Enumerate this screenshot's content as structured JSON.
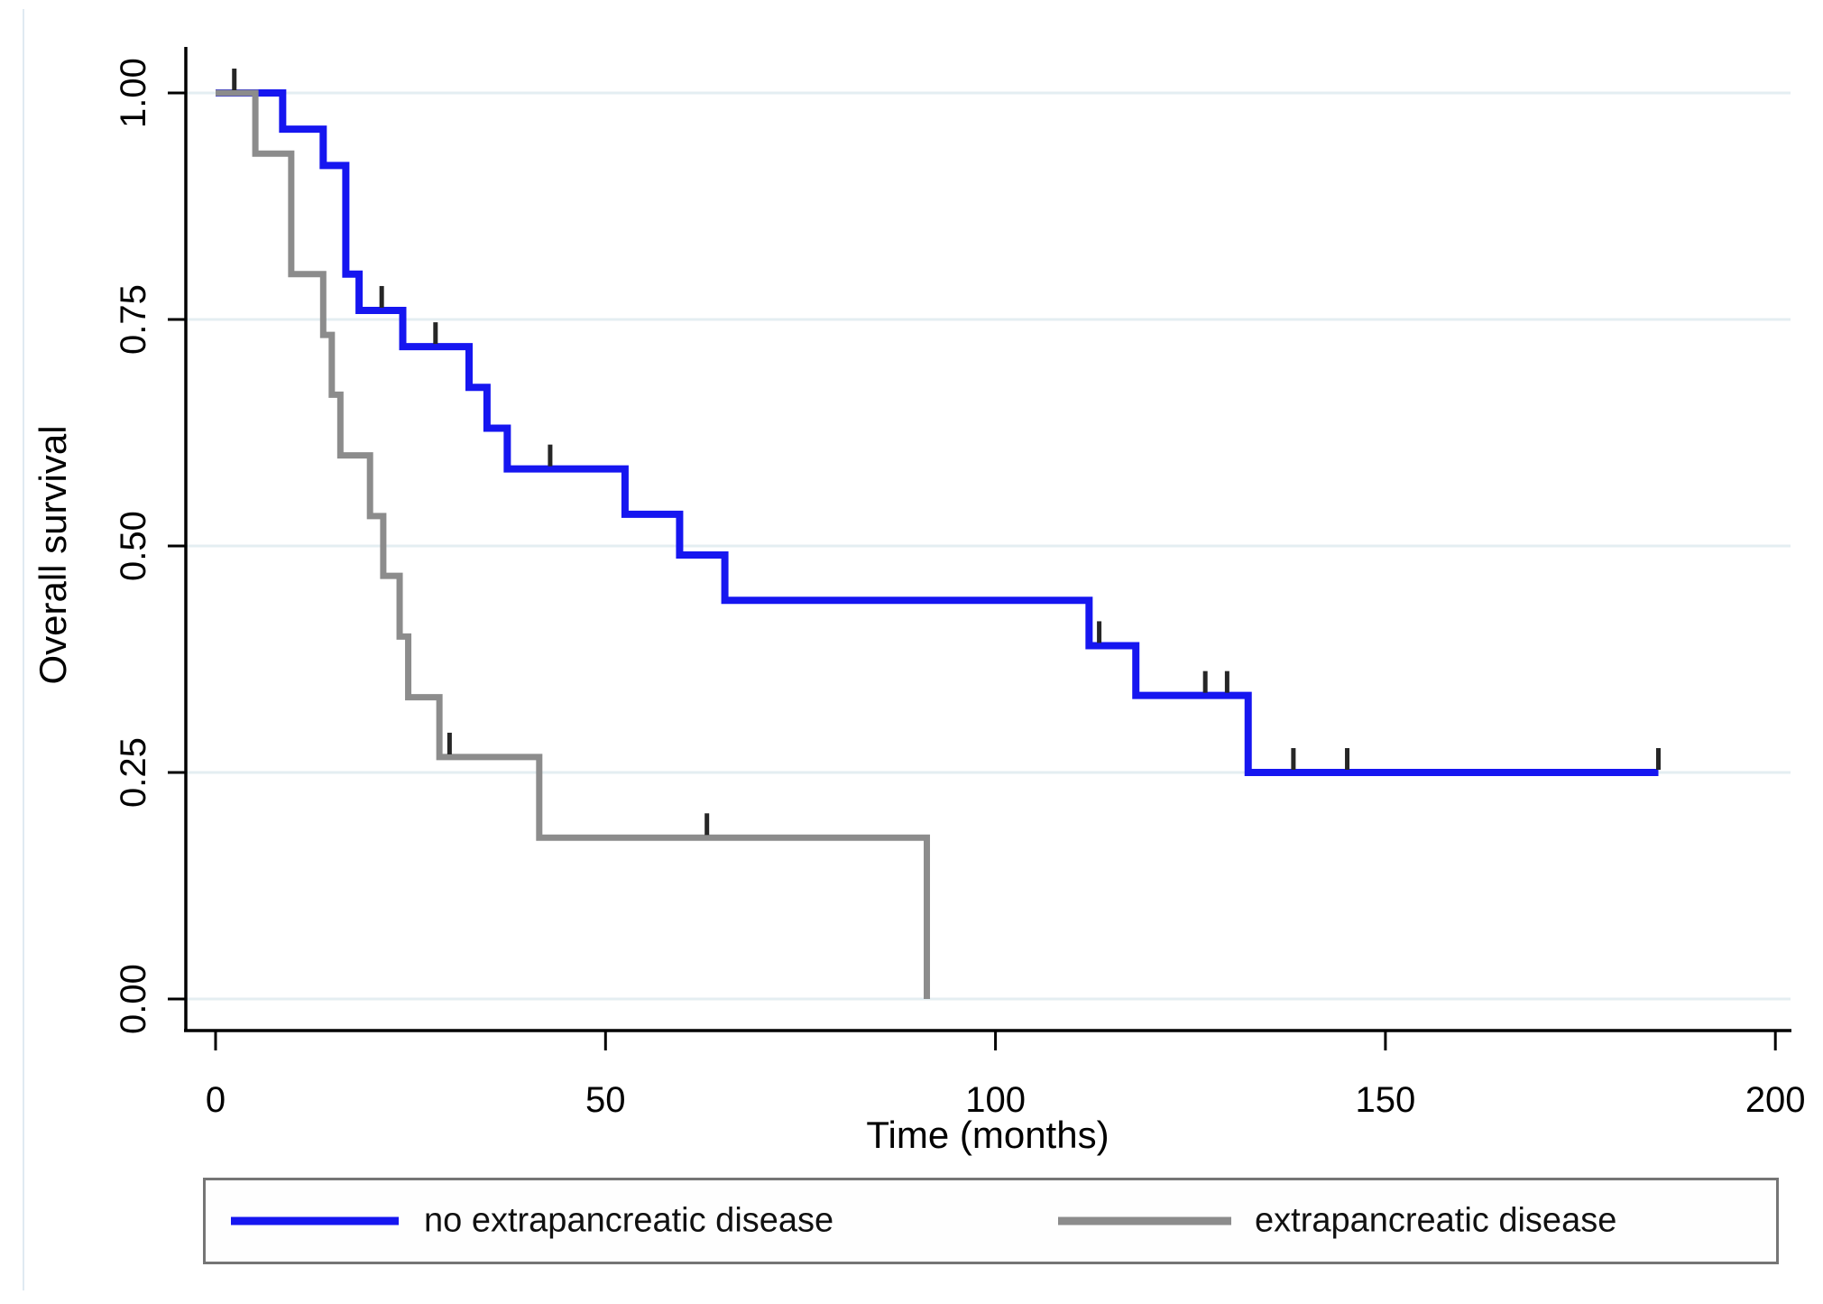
{
  "figure": {
    "background": "#ffffff",
    "axis_color": "#000000",
    "censor_tick_color": "#262626"
  },
  "chart_data": {
    "type": "line",
    "subtype": "kaplan-meier-step",
    "title": "",
    "xlabel": "Time (months)",
    "ylabel": "Overall survival",
    "xlim": [
      0,
      207
    ],
    "ylim": [
      0,
      1.0
    ],
    "grid": "horizontal",
    "gridline_color": "#e4eef2",
    "xticks": [
      "0",
      "50",
      "100",
      "150",
      "200"
    ],
    "xtick_values": [
      0,
      50,
      100,
      150,
      200
    ],
    "yticks": [
      "0.00",
      "0.25",
      "0.50",
      "0.75",
      "1.00"
    ],
    "ytick_values": [
      0,
      0.25,
      0.5,
      0.75,
      1.0
    ],
    "legend_position": "bottom-box",
    "series": [
      {
        "name": "no extrapancreatic disease",
        "color": "#1616f0",
        "line_width": 8,
        "steps": [
          [
            0,
            1.0
          ],
          [
            8.6,
            0.96
          ],
          [
            13.8,
            0.92
          ],
          [
            16.7,
            0.8
          ],
          [
            18.4,
            0.76
          ],
          [
            24,
            0.72
          ],
          [
            32.5,
            0.675
          ],
          [
            34.8,
            0.63
          ],
          [
            37.4,
            0.585
          ],
          [
            52.5,
            0.535
          ],
          [
            59.5,
            0.49
          ],
          [
            65.3,
            0.44
          ],
          [
            112,
            0.39
          ],
          [
            118,
            0.335
          ],
          [
            132.4,
            0.25
          ]
        ],
        "end_time": 185,
        "censor_marks": [
          [
            2.4,
            1.0
          ],
          [
            21.3,
            0.76
          ],
          [
            28.2,
            0.72
          ],
          [
            42.9,
            0.585
          ],
          [
            113.3,
            0.39
          ],
          [
            126.9,
            0.335
          ],
          [
            129.7,
            0.335
          ],
          [
            138.2,
            0.25
          ],
          [
            145.1,
            0.25
          ],
          [
            185,
            0.25
          ]
        ]
      },
      {
        "name": "extrapancreatic disease",
        "color": "#8c8c8c",
        "line_width": 7,
        "steps": [
          [
            0,
            1.0
          ],
          [
            5.1,
            0.933
          ],
          [
            9.7,
            0.8
          ],
          [
            13.8,
            0.733
          ],
          [
            14.9,
            0.667
          ],
          [
            16.0,
            0.6
          ],
          [
            19.8,
            0.533
          ],
          [
            21.5,
            0.467
          ],
          [
            23.6,
            0.4
          ],
          [
            24.7,
            0.333
          ],
          [
            28.7,
            0.267
          ],
          [
            41.5,
            0.178
          ],
          [
            91.2,
            0.0
          ]
        ],
        "end_time": 91.2,
        "censor_marks": [
          [
            30,
            0.267
          ],
          [
            63,
            0.178
          ]
        ]
      }
    ]
  },
  "legend": {
    "entries": [
      {
        "label": "no extrapancreatic disease",
        "color": "#1616f0"
      },
      {
        "label": "extrapancreatic disease",
        "color": "#8c8c8c"
      }
    ]
  }
}
